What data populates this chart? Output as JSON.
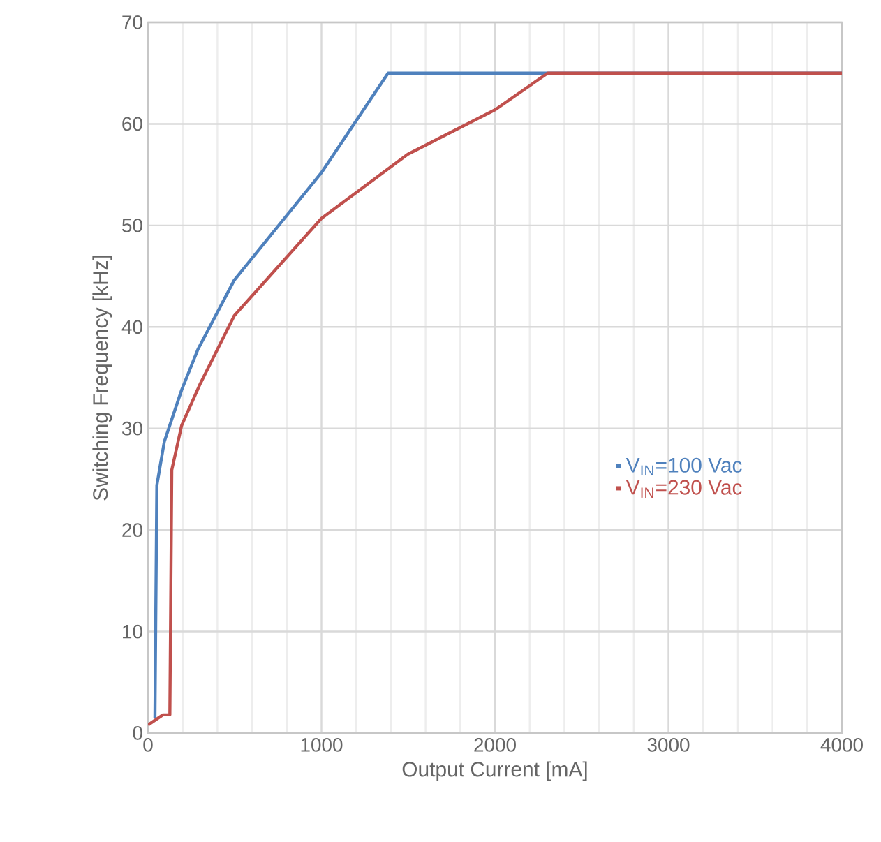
{
  "chart_data": {
    "type": "line",
    "xlabel": "Output Current [mA]",
    "ylabel": "Switching Frequency [kHz]",
    "xlim": [
      0,
      4000
    ],
    "ylim": [
      0,
      70
    ],
    "xticks": [
      0,
      1000,
      2000,
      3000,
      4000
    ],
    "yticks": [
      0,
      10,
      20,
      30,
      40,
      50,
      60,
      70
    ],
    "grid": true,
    "legend": "right",
    "marker": "none",
    "line_style": "solid",
    "series": [
      {
        "name": "V$_{IN}$=100 Vac",
        "color": "#4f81bd",
        "x": [
          40,
          51,
          94,
          194,
          288,
          497,
          1000,
          1384,
          4000
        ],
        "values": [
          1.5,
          24.4,
          28.7,
          33.8,
          37.8,
          44.6,
          55.2,
          65.0,
          65.0
        ]
      },
      {
        "name": "V$_{IN}$=230 Vac",
        "color": "#c0504d",
        "x": [
          0,
          86,
          126,
          137,
          194,
          301,
          497,
          1000,
          1497,
          2002,
          2304,
          4000
        ],
        "values": [
          0.8,
          1.8,
          1.8,
          25.9,
          30.3,
          34.4,
          41.1,
          50.7,
          57.0,
          61.4,
          65.0,
          65.0
        ]
      }
    ]
  }
}
